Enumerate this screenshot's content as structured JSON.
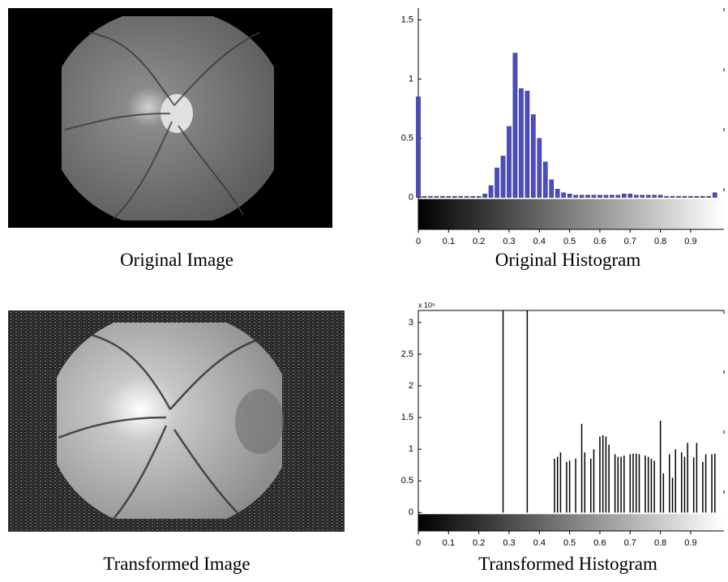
{
  "images": [
    {
      "caption": "Original Image"
    },
    {
      "caption": "Transformed Image"
    }
  ],
  "chart_data": [
    {
      "type": "bar",
      "title": "Original Histogram",
      "color": "#4b4bc8",
      "x": [
        0,
        0.02,
        0.04,
        0.06,
        0.08,
        0.1,
        0.12,
        0.14,
        0.16,
        0.18,
        0.2,
        0.22,
        0.24,
        0.26,
        0.28,
        0.3,
        0.32,
        0.34,
        0.36,
        0.38,
        0.4,
        0.42,
        0.44,
        0.46,
        0.48,
        0.5,
        0.52,
        0.54,
        0.56,
        0.58,
        0.6,
        0.62,
        0.64,
        0.66,
        0.68,
        0.7,
        0.72,
        0.74,
        0.76,
        0.78,
        0.8,
        0.82,
        0.84,
        0.86,
        0.88,
        0.9,
        0.92,
        0.94,
        0.96,
        0.98
      ],
      "values": [
        0.85,
        0.01,
        0.01,
        0.01,
        0.01,
        0.01,
        0.01,
        0.01,
        0.01,
        0.01,
        0.01,
        0.03,
        0.1,
        0.25,
        0.35,
        0.6,
        1.22,
        0.92,
        0.9,
        0.7,
        0.5,
        0.3,
        0.15,
        0.07,
        0.04,
        0.03,
        0.02,
        0.02,
        0.02,
        0.02,
        0.02,
        0.02,
        0.02,
        0.02,
        0.03,
        0.03,
        0.02,
        0.02,
        0.02,
        0.02,
        0.02,
        0.01,
        0.01,
        0.01,
        0.01,
        0.01,
        0.01,
        0.01,
        0.01,
        0.04
      ],
      "xlim": [
        0,
        1.01
      ],
      "ylim": [
        -0.27,
        1.6
      ],
      "xticks": [
        0,
        0.1,
        0.2,
        0.3,
        0.4,
        0.5,
        0.6,
        0.7,
        0.8,
        0.9
      ],
      "yticks": [
        0,
        0.5,
        1,
        1.5
      ],
      "colorbar": true
    },
    {
      "type": "bar",
      "title": "Transformed Histogram",
      "color": "#000000",
      "annotation": "x 10⁵",
      "x": [
        0.28,
        0.36,
        0.45,
        0.46,
        0.47,
        0.49,
        0.5,
        0.52,
        0.54,
        0.55,
        0.57,
        0.58,
        0.6,
        0.61,
        0.62,
        0.63,
        0.65,
        0.66,
        0.67,
        0.68,
        0.7,
        0.71,
        0.72,
        0.73,
        0.75,
        0.76,
        0.77,
        0.78,
        0.8,
        0.81,
        0.83,
        0.84,
        0.85,
        0.87,
        0.88,
        0.89,
        0.91,
        0.92,
        0.94,
        0.95,
        0.97,
        0.98
      ],
      "values": [
        3.2,
        3.2,
        0.85,
        0.88,
        0.95,
        0.8,
        0.82,
        0.85,
        1.4,
        0.95,
        0.85,
        1.0,
        1.2,
        1.22,
        1.2,
        1.07,
        0.92,
        0.88,
        0.88,
        0.9,
        0.92,
        0.93,
        0.93,
        0.92,
        0.9,
        0.88,
        0.85,
        0.82,
        1.45,
        0.62,
        0.92,
        0.55,
        1.0,
        0.95,
        0.88,
        1.1,
        0.87,
        1.1,
        0.8,
        0.92,
        0.92,
        0.93
      ],
      "xlim": [
        0,
        1.01
      ],
      "ylim": [
        -0.29,
        3.19
      ],
      "xticks": [
        0,
        0.1,
        0.2,
        0.3,
        0.4,
        0.5,
        0.6,
        0.7,
        0.8,
        0.9
      ],
      "yticks": [
        0,
        0.5,
        1,
        1.5,
        2,
        2.5,
        3
      ],
      "colorbar": true
    }
  ]
}
